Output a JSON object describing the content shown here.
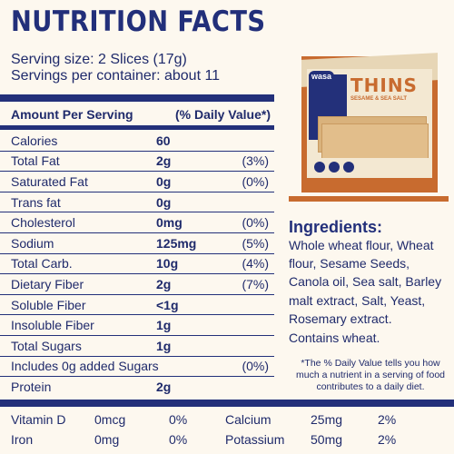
{
  "title": "NUTRITION FACTS",
  "serving": {
    "size": "Serving size: 2 Slices (17g)",
    "per_container": "Servings per container: about 11"
  },
  "table_header": {
    "left": "Amount Per Serving",
    "right": "(% Daily Value*)"
  },
  "rows": [
    {
      "name": "Calories",
      "amount": "60",
      "dv": ""
    },
    {
      "name": "Total Fat",
      "amount": "2g",
      "dv": "(3%)"
    },
    {
      "name": "Saturated Fat",
      "amount": "0g",
      "dv": "(0%)"
    },
    {
      "name": "Trans fat",
      "amount": "0g",
      "dv": ""
    },
    {
      "name": "Cholesterol",
      "amount": "0mg",
      "dv": "(0%)"
    },
    {
      "name": "Sodium",
      "amount": "125mg",
      "dv": "(5%)"
    },
    {
      "name": "Total Carb.",
      "amount": "10g",
      "dv": "(4%)"
    },
    {
      "name": "Dietary Fiber",
      "amount": "2g",
      "dv": "(7%)"
    },
    {
      "name": "Soluble Fiber",
      "amount": "<1g",
      "dv": ""
    },
    {
      "name": "Insoluble Fiber",
      "amount": "1g",
      "dv": ""
    },
    {
      "name": "Total Sugars",
      "amount": "1g",
      "dv": ""
    },
    {
      "name": "Includes 0g added Sugars",
      "amount": "",
      "dv": "(0%)"
    },
    {
      "name": "Protein",
      "amount": "2g",
      "dv": ""
    }
  ],
  "vitamins": [
    {
      "n1": "Vitamin D",
      "a1": "0mcg",
      "d1": "0%",
      "n2": "Calcium",
      "a2": "25mg",
      "d2": "2%"
    },
    {
      "n1": "Iron",
      "a1": "0mg",
      "d1": "0%",
      "n2": "Potassium",
      "a2": "50mg",
      "d2": "2%"
    }
  ],
  "product": {
    "brand": "wasa",
    "name": "THINS",
    "flavor": "SESAME & SEA SALT"
  },
  "ingredients": {
    "title": "Ingredients:",
    "text": "Whole wheat flour, Wheat flour, Sesame Seeds, Canola oil, Sea salt, Barley malt extract, Salt, Yeast, Rosemary extract.",
    "contains": "Contains wheat."
  },
  "footnote": "*The % Daily Value tells you how much a nutrient in a serving of food contributes to a daily diet.",
  "colors": {
    "navy": "#23307a",
    "orange": "#c86b2f",
    "background": "#fdf8ef"
  }
}
